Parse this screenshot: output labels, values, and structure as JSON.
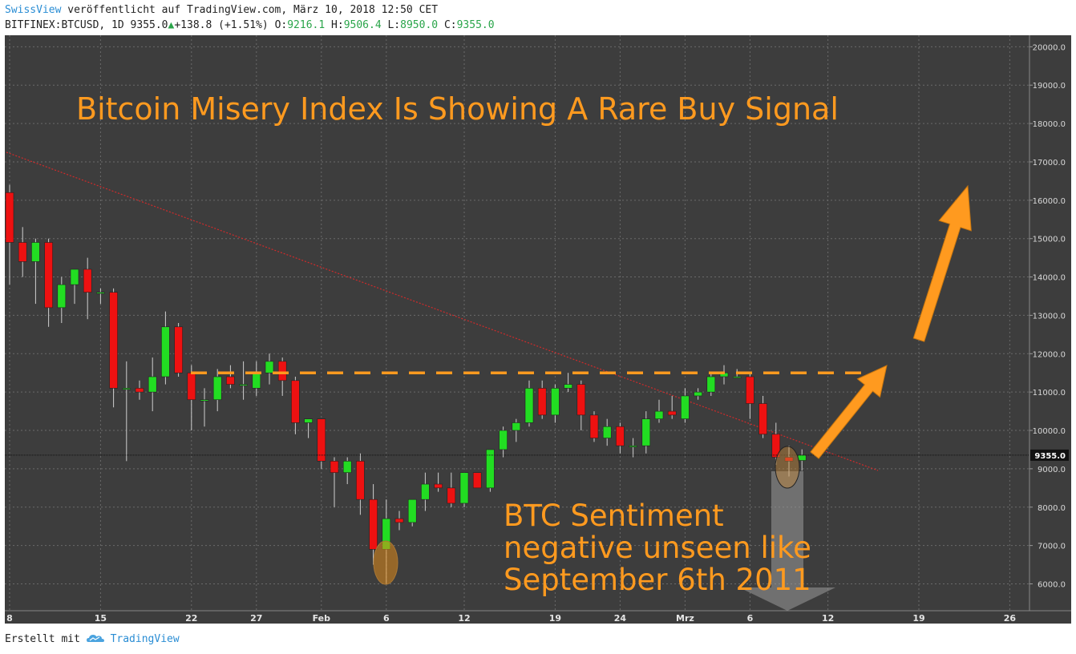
{
  "header": {
    "brand": "SwissView",
    "published_text": " veröffentlicht auf TradingView.com, März 10, 2018 12:50 CET",
    "symbol_interval": "BITFINEX:BTCUSD, 1D",
    "last": "9355.0",
    "change": "+138.8 (+1.51%)",
    "o_label": "O:",
    "o_value": "9216.1",
    "h_label": "H:",
    "h_value": "9506.4",
    "l_label": "L:",
    "l_value": "8950.0",
    "c_label": "C:",
    "c_value": "9355.0"
  },
  "footer": {
    "created_with": "Erstellt mit",
    "tradingview": "TradingView"
  },
  "colors": {
    "background": "#3d3d3d",
    "up": "#22dd22",
    "down": "#ee1111",
    "accent": "#ff9a1f",
    "grid": "#6a6a6a"
  },
  "chart_data": {
    "type": "candlestick",
    "title": "Bitcoin Misery Index Is Showing A Rare Buy Signal",
    "annotation": [
      "BTC Sentiment",
      "negative unseen like",
      "September 6th 2011"
    ],
    "ylim": [
      5300,
      20300
    ],
    "y_ticks": [
      "6000.0",
      "7000.0",
      "8000.0",
      "9000.0",
      "10000.0",
      "11000.0",
      "12000.0",
      "13000.0",
      "14000.0",
      "15000.0",
      "16000.0",
      "17000.0",
      "18000.0",
      "19000.0",
      "20000.0"
    ],
    "x_ticks": [
      {
        "label": "8",
        "day": 0
      },
      {
        "label": "15",
        "day": 7
      },
      {
        "label": "22",
        "day": 14
      },
      {
        "label": "27",
        "day": 19
      },
      {
        "label": "Feb",
        "day": 24
      },
      {
        "label": "6",
        "day": 29
      },
      {
        "label": "12",
        "day": 35
      },
      {
        "label": "19",
        "day": 42
      },
      {
        "label": "24",
        "day": 47
      },
      {
        "label": "Mrz",
        "day": 52
      },
      {
        "label": "6",
        "day": 57
      },
      {
        "label": "12",
        "day": 63
      },
      {
        "label": "19",
        "day": 70
      },
      {
        "label": "26",
        "day": 77
      }
    ],
    "last_price": "9355.0",
    "resistance_level": 11500,
    "ohlc": [
      [
        16200,
        16400,
        13800,
        14900
      ],
      [
        14900,
        15300,
        14000,
        14400
      ],
      [
        14400,
        15000,
        13300,
        14900
      ],
      [
        14900,
        15000,
        12700,
        13200
      ],
      [
        13200,
        14000,
        12800,
        13800
      ],
      [
        13800,
        14200,
        13300,
        14200
      ],
      [
        14200,
        14500,
        12900,
        13600
      ],
      [
        13600,
        13700,
        13300,
        13600
      ],
      [
        13600,
        13700,
        10600,
        11100
      ],
      [
        11100,
        11800,
        9200,
        11100
      ],
      [
        11100,
        11300,
        10800,
        11000
      ],
      [
        11000,
        11900,
        10500,
        11400
      ],
      [
        11400,
        13100,
        11200,
        12700
      ],
      [
        12700,
        12800,
        11400,
        11500
      ],
      [
        11500,
        11700,
        10000,
        10800
      ],
      [
        10800,
        11100,
        10100,
        10800
      ],
      [
        10800,
        11600,
        10500,
        11400
      ],
      [
        11400,
        11700,
        11100,
        11200
      ],
      [
        11200,
        11800,
        10800,
        11200
      ],
      [
        11100,
        11800,
        10900,
        11500
      ],
      [
        11500,
        12000,
        11200,
        11800
      ],
      [
        11800,
        11900,
        10900,
        11300
      ],
      [
        11300,
        11400,
        9900,
        10200
      ],
      [
        10200,
        10300,
        9800,
        10300
      ],
      [
        10300,
        10300,
        9000,
        9200
      ],
      [
        9200,
        9300,
        8000,
        8900
      ],
      [
        8900,
        9300,
        8600,
        9200
      ],
      [
        9200,
        9400,
        7800,
        8200
      ],
      [
        8200,
        8600,
        6500,
        6900
      ],
      [
        6900,
        8200,
        6000,
        7700
      ],
      [
        7700,
        7900,
        7400,
        7600
      ],
      [
        7600,
        8200,
        7500,
        8200
      ],
      [
        8200,
        8900,
        7900,
        8600
      ],
      [
        8600,
        8900,
        8400,
        8500
      ],
      [
        8500,
        8900,
        8000,
        8100
      ],
      [
        8100,
        8900,
        8000,
        8900
      ],
      [
        8900,
        8900,
        8500,
        8500
      ],
      [
        8500,
        9500,
        8400,
        9500
      ],
      [
        9500,
        10100,
        9300,
        10000
      ],
      [
        10000,
        10300,
        9700,
        10200
      ],
      [
        10200,
        11300,
        10100,
        11100
      ],
      [
        11100,
        11300,
        10300,
        10400
      ],
      [
        10400,
        11200,
        10200,
        11100
      ],
      [
        11100,
        11500,
        11000,
        11200
      ],
      [
        11200,
        11300,
        10000,
        10400
      ],
      [
        10400,
        10500,
        9700,
        9800
      ],
      [
        9800,
        10300,
        9600,
        10100
      ],
      [
        10100,
        10200,
        9400,
        9600
      ],
      [
        9600,
        9800,
        9300,
        9600
      ],
      [
        9600,
        10500,
        9400,
        10300
      ],
      [
        10300,
        10800,
        10200,
        10500
      ],
      [
        10500,
        10900,
        10300,
        10400
      ],
      [
        10300,
        11100,
        10200,
        10900
      ],
      [
        10900,
        11100,
        10800,
        11000
      ],
      [
        11000,
        11500,
        10900,
        11400
      ],
      [
        11400,
        11700,
        11200,
        11500
      ],
      [
        11400,
        11600,
        11400,
        11400
      ],
      [
        11400,
        11500,
        10300,
        10700
      ],
      [
        10700,
        10900,
        9800,
        9900
      ],
      [
        9900,
        10200,
        9100,
        9300
      ],
      [
        9300,
        9600,
        8800,
        9200
      ],
      [
        9216.1,
        9506.4,
        8950.0,
        9355.0
      ]
    ]
  }
}
